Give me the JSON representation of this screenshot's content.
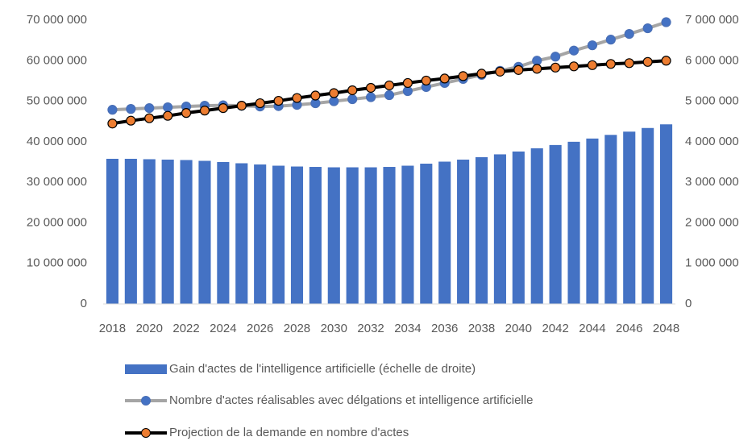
{
  "chart_data": {
    "type": "bar",
    "categories": [
      "2018",
      null,
      "2020",
      null,
      "2022",
      null,
      "2024",
      null,
      "2026",
      null,
      "2028",
      null,
      "2030",
      null,
      "2032",
      null,
      "2034",
      null,
      "2036",
      null,
      "2038",
      null,
      "2040",
      null,
      "2042",
      null,
      "2044",
      null,
      "2046",
      null,
      "2048"
    ],
    "series": [
      {
        "name": "Gain d'actes de l'intelligence artificielle (échelle de droite)",
        "type": "bar",
        "axis": "y2",
        "color": "#4472c4",
        "values": [
          3580000,
          3580000,
          3570000,
          3560000,
          3550000,
          3530000,
          3500000,
          3470000,
          3440000,
          3410000,
          3390000,
          3380000,
          3370000,
          3370000,
          3370000,
          3380000,
          3410000,
          3460000,
          3510000,
          3560000,
          3620000,
          3690000,
          3760000,
          3840000,
          3920000,
          4000000,
          4080000,
          4170000,
          4250000,
          4340000,
          4430000
        ]
      },
      {
        "name": "Nombre d'actes réalisables avec délgations et intelligence artificielle",
        "type": "line",
        "color": "#a5a5a5",
        "marker_color": "#4472c4",
        "values": [
          47900000,
          48100000,
          48300000,
          48500000,
          48700000,
          48900000,
          49000000,
          48900000,
          48700000,
          48800000,
          49100000,
          49500000,
          50000000,
          50500000,
          51000000,
          51500000,
          52500000,
          53500000,
          54500000,
          55500000,
          56500000,
          57500000,
          58500000,
          60000000,
          61000000,
          62500000,
          63800000,
          65200000,
          66600000,
          68000000,
          69500000
        ]
      },
      {
        "name": "Projection de la demande en nombre d'actes",
        "type": "line",
        "color": "#000000",
        "marker_color": "#ed7d31",
        "values": [
          44500000,
          45200000,
          45800000,
          46400000,
          47100000,
          47700000,
          48300000,
          48900000,
          49500000,
          50100000,
          50800000,
          51400000,
          52000000,
          52700000,
          53300000,
          53900000,
          54500000,
          55100000,
          55600000,
          56200000,
          56800000,
          57300000,
          57700000,
          58000000,
          58300000,
          58600000,
          58900000,
          59200000,
          59400000,
          59700000,
          60000000
        ]
      }
    ],
    "ylim": [
      0,
      70000000
    ],
    "yticks": [
      {
        "value": 0,
        "label": "0"
      },
      {
        "value": 10000000,
        "label": "10 000 000"
      },
      {
        "value": 20000000,
        "label": "20 000 000"
      },
      {
        "value": 30000000,
        "label": "30 000 000"
      },
      {
        "value": 40000000,
        "label": "40 000 000"
      },
      {
        "value": 50000000,
        "label": "50 000 000"
      },
      {
        "value": 60000000,
        "label": "60 000 000"
      },
      {
        "value": 70000000,
        "label": "70 000 000"
      }
    ],
    "y2lim": [
      0,
      7000000
    ],
    "y2ticks": [
      {
        "value": 0,
        "label": "0"
      },
      {
        "value": 1000000,
        "label": "1 000 000"
      },
      {
        "value": 2000000,
        "label": "2 000 000"
      },
      {
        "value": 3000000,
        "label": "3 000 000"
      },
      {
        "value": 4000000,
        "label": "4 000 000"
      },
      {
        "value": 5000000,
        "label": "5 000 000"
      },
      {
        "value": 6000000,
        "label": "6 000 000"
      },
      {
        "value": 7000000,
        "label": "7 000 000"
      }
    ],
    "legend": "bottom"
  }
}
